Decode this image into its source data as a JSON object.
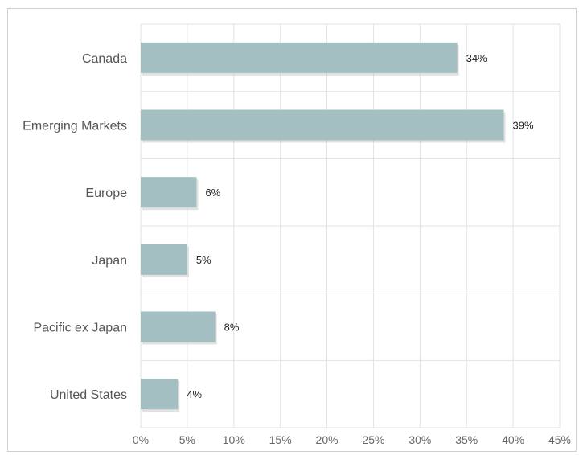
{
  "chart_data": {
    "type": "bar",
    "orientation": "horizontal",
    "categories": [
      "Canada",
      "Emerging Markets",
      "Europe",
      "Japan",
      "Pacific ex Japan",
      "United States"
    ],
    "values": [
      34,
      39,
      6,
      5,
      8,
      4
    ],
    "value_labels": [
      "34%",
      "39%",
      "6%",
      "5%",
      "8%",
      "4%"
    ],
    "xlim": [
      0,
      45
    ],
    "x_ticks": [
      0,
      5,
      10,
      15,
      20,
      25,
      30,
      35,
      40,
      45
    ],
    "x_tick_labels": [
      "0%",
      "5%",
      "10%",
      "15%",
      "20%",
      "25%",
      "30%",
      "35%",
      "40%",
      "45%"
    ],
    "grid": true,
    "bar_color": "#a3bfc2"
  }
}
